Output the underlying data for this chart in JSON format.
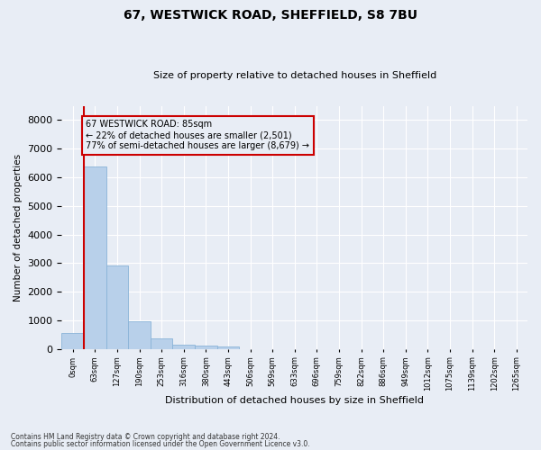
{
  "title1": "67, WESTWICK ROAD, SHEFFIELD, S8 7BU",
  "title2": "Size of property relative to detached houses in Sheffield",
  "xlabel": "Distribution of detached houses by size in Sheffield",
  "ylabel": "Number of detached properties",
  "bin_labels": [
    "0sqm",
    "63sqm",
    "127sqm",
    "190sqm",
    "253sqm",
    "316sqm",
    "380sqm",
    "443sqm",
    "506sqm",
    "569sqm",
    "633sqm",
    "696sqm",
    "759sqm",
    "822sqm",
    "886sqm",
    "949sqm",
    "1012sqm",
    "1075sqm",
    "1139sqm",
    "1202sqm",
    "1265sqm"
  ],
  "bar_values": [
    550,
    6380,
    2920,
    960,
    370,
    165,
    115,
    75,
    0,
    0,
    0,
    0,
    0,
    0,
    0,
    0,
    0,
    0,
    0,
    0,
    0
  ],
  "bar_color": "#b8d0ea",
  "bar_edge_color": "#8ab4d8",
  "annotation_box_text1": "67 WESTWICK ROAD: 85sqm",
  "annotation_box_text2": "← 22% of detached houses are smaller (2,501)",
  "annotation_box_text3": "77% of semi-detached houses are larger (8,679) →",
  "ylim": [
    0,
    8500
  ],
  "yticks": [
    0,
    1000,
    2000,
    3000,
    4000,
    5000,
    6000,
    7000,
    8000
  ],
  "footnote1": "Contains HM Land Registry data © Crown copyright and database right 2024.",
  "footnote2": "Contains public sector information licensed under the Open Government Licence v3.0.",
  "bg_color": "#e8edf5",
  "grid_color": "#ffffff",
  "red_line_color": "#cc0000",
  "box_edge_color": "#cc0000"
}
